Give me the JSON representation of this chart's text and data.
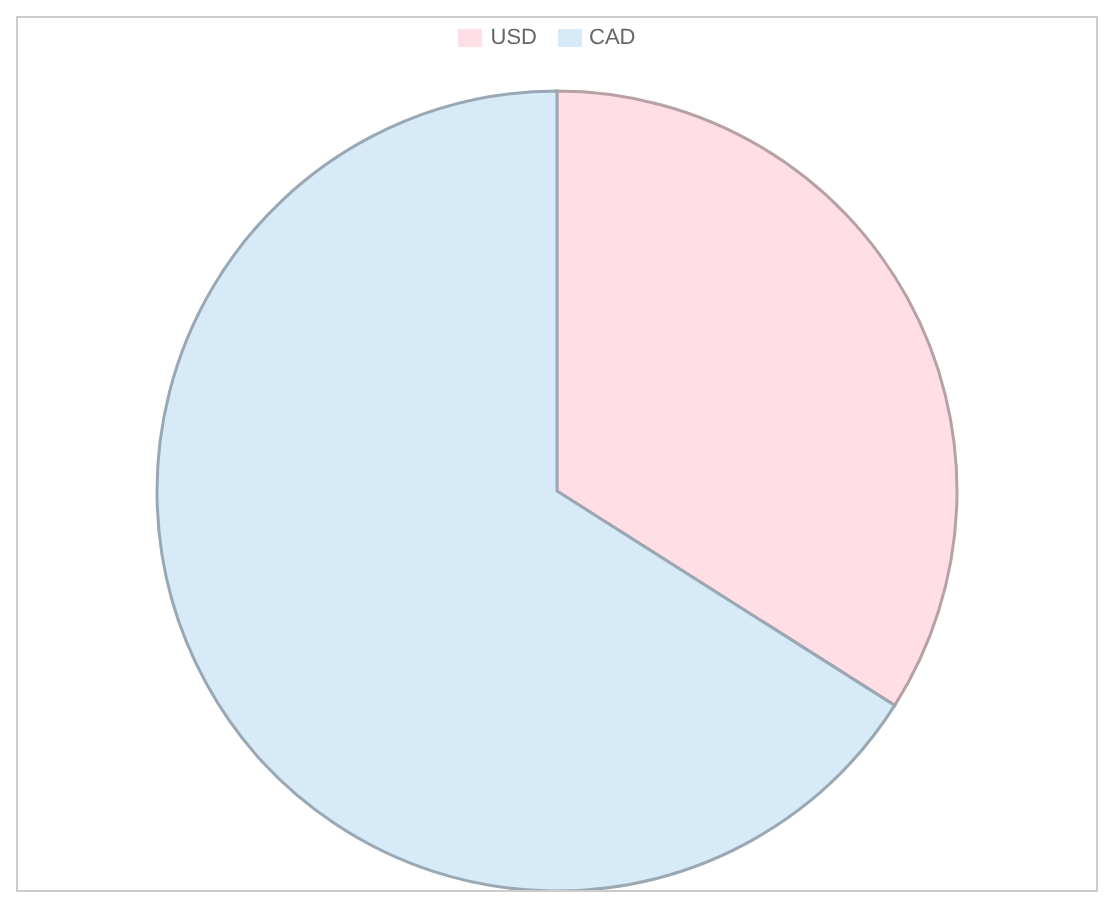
{
  "chart_data": {
    "type": "pie",
    "categories": [
      "USD",
      "CAD"
    ],
    "values": [
      34,
      66
    ],
    "colors": [
      "#ffdfe5",
      "#d6eaf8"
    ],
    "legend": "top"
  }
}
